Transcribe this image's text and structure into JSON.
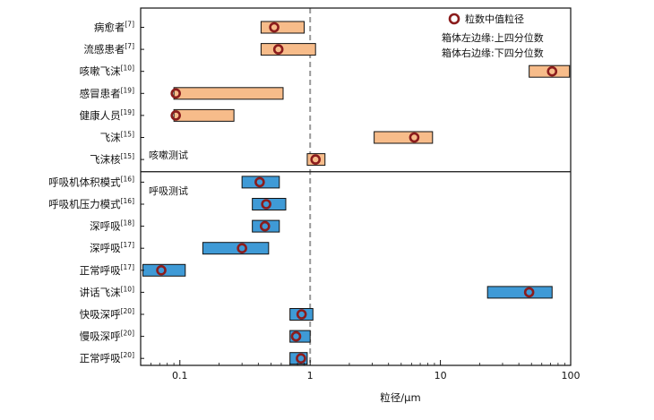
{
  "chart_data": {
    "type": "range-bar",
    "xlabel": "粒径/μm",
    "xscale": "log",
    "xlim": [
      0.05,
      100
    ],
    "xticks": [
      "0.1",
      "1",
      "10",
      "100"
    ],
    "reference_line": 1,
    "legend": {
      "placement": "top-right",
      "marker_label": "粒数中值粒径",
      "notes": [
        "箱体左边缘:上四分位数",
        "箱体右边缘:下四分位数"
      ]
    },
    "colors": {
      "cough": "#f7bc8a",
      "breath": "#3f9ad6",
      "marker": "#8b1c1c",
      "refline": "#999999"
    },
    "groups": [
      {
        "name": "咳嗽测试",
        "color_key": "cough"
      },
      {
        "name": "呼吸测试",
        "color_key": "breath"
      }
    ],
    "rows": [
      {
        "label": "病愈者",
        "ref": "[7]",
        "group": 0,
        "q1": 0.42,
        "q3": 0.9,
        "median": 0.53
      },
      {
        "label": "流感患者",
        "ref": "[7]",
        "group": 0,
        "q1": 0.42,
        "q3": 1.1,
        "median": 0.57
      },
      {
        "label": "咳嗽飞沫",
        "ref": "[10]",
        "group": 0,
        "q1": 48,
        "q3": 98,
        "median": 72
      },
      {
        "label": "感冒患者",
        "ref": "[19]",
        "group": 0,
        "q1": 0.09,
        "q3": 0.62,
        "median": 0.093
      },
      {
        "label": "健康人员",
        "ref": "[19]",
        "group": 0,
        "q1": 0.09,
        "q3": 0.26,
        "median": 0.093
      },
      {
        "label": "飞沫",
        "ref": "[15]",
        "group": 0,
        "q1": 3.1,
        "q3": 8.7,
        "median": 6.3
      },
      {
        "label": "飞沫核",
        "ref": "[15]",
        "group": 0,
        "q1": 0.95,
        "q3": 1.3,
        "median": 1.1
      },
      {
        "label": "呼吸机体积模式",
        "ref": "[16]",
        "group": 1,
        "q1": 0.3,
        "q3": 0.58,
        "median": 0.41
      },
      {
        "label": "呼吸机压力模式",
        "ref": "[16]",
        "group": 1,
        "q1": 0.36,
        "q3": 0.65,
        "median": 0.46
      },
      {
        "label": "深呼吸",
        "ref": "[18]",
        "group": 1,
        "q1": 0.36,
        "q3": 0.58,
        "median": 0.45
      },
      {
        "label": "深呼吸",
        "ref": "[17]",
        "group": 1,
        "q1": 0.15,
        "q3": 0.48,
        "median": 0.3
      },
      {
        "label": "正常呼吸",
        "ref": "[17]",
        "group": 1,
        "q1": 0.052,
        "q3": 0.11,
        "median": 0.072
      },
      {
        "label": "讲话飞沫",
        "ref": "[10]",
        "group": 1,
        "q1": 23,
        "q3": 72,
        "median": 48
      },
      {
        "label": "快吸深呼",
        "ref": "[20]",
        "group": 1,
        "q1": 0.7,
        "q3": 1.05,
        "median": 0.86
      },
      {
        "label": "慢吸深呼",
        "ref": "[20]",
        "group": 1,
        "q1": 0.7,
        "q3": 1.0,
        "median": 0.78
      },
      {
        "label": "正常呼吸",
        "ref": "[20]",
        "group": 1,
        "q1": 0.7,
        "q3": 0.95,
        "median": 0.85
      }
    ]
  }
}
